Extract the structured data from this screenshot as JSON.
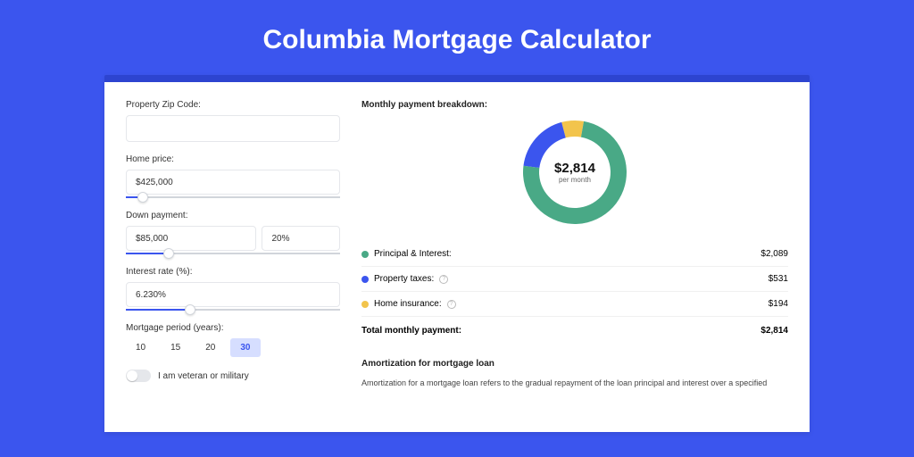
{
  "page": {
    "title": "Columbia Mortgage Calculator"
  },
  "colors": {
    "page_bg": "#3b55ee",
    "card_border_top": "#2d44d0",
    "slider_fill": "#3b55ee",
    "principal": "#49a986",
    "taxes": "#3b55ee",
    "insurance": "#f2c44c"
  },
  "inputs": {
    "zip": {
      "label": "Property Zip Code:",
      "value": ""
    },
    "home_price": {
      "label": "Home price:",
      "value": "$425,000",
      "slider_pct": 8
    },
    "down_payment": {
      "label": "Down payment:",
      "value": "$85,000",
      "pct": "20%",
      "slider_pct": 20
    },
    "interest": {
      "label": "Interest rate (%):",
      "value": "6.230%",
      "slider_pct": 30
    },
    "period": {
      "label": "Mortgage period (years):",
      "options": [
        "10",
        "15",
        "20",
        "30"
      ],
      "active": "30"
    },
    "veteran": {
      "label": "I am veteran or military",
      "value": false
    }
  },
  "breakdown": {
    "title": "Monthly payment breakdown:",
    "donut": {
      "amount": "$2,814",
      "sub": "per month",
      "slices": [
        {
          "color": "#49a986",
          "pct": 74.2
        },
        {
          "color": "#3b55ee",
          "pct": 18.9
        },
        {
          "color": "#f2c44c",
          "pct": 6.9
        }
      ],
      "thickness": 18,
      "radius": 60
    },
    "items": [
      {
        "label": "Principal & Interest:",
        "value": "$2,089",
        "color": "#49a986",
        "help": false
      },
      {
        "label": "Property taxes:",
        "value": "$531",
        "color": "#3b55ee",
        "help": true
      },
      {
        "label": "Home insurance:",
        "value": "$194",
        "color": "#f2c44c",
        "help": true
      }
    ],
    "total": {
      "label": "Total monthly payment:",
      "value": "$2,814"
    }
  },
  "amortization": {
    "title": "Amortization for mortgage loan",
    "text": "Amortization for a mortgage loan refers to the gradual repayment of the loan principal and interest over a specified"
  }
}
